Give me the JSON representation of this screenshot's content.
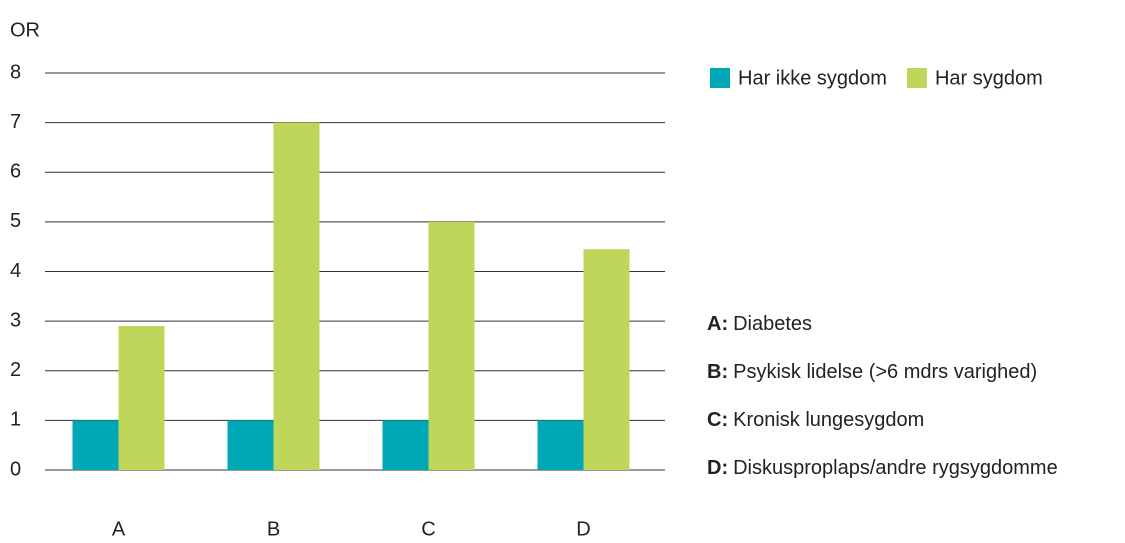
{
  "chart_data": {
    "type": "bar",
    "y_label": "OR",
    "categories": [
      "A",
      "B",
      "C",
      "D"
    ],
    "series": [
      {
        "name": "Har ikke sygdom",
        "color": "#00a7b5",
        "values": [
          1,
          1,
          1,
          1
        ]
      },
      {
        "name": "Har sygdom",
        "color": "#bed75a",
        "values": [
          2.9,
          7,
          5,
          4.45
        ]
      }
    ],
    "ylim": [
      0,
      8
    ],
    "yticks": [
      0,
      1,
      2,
      3,
      4,
      5,
      6,
      7,
      8
    ],
    "grid": true,
    "legend": "top-right",
    "notes": [
      {
        "key": "A:",
        "text": "Diabetes"
      },
      {
        "key": "B:",
        "text": "Psykisk lidelse (>6 mdrs varighed)"
      },
      {
        "key": "C:",
        "text": "Kronisk lungesygdom"
      },
      {
        "key": "D:",
        "text": "Diskusproplaps/andre rygsygdomme"
      }
    ]
  }
}
